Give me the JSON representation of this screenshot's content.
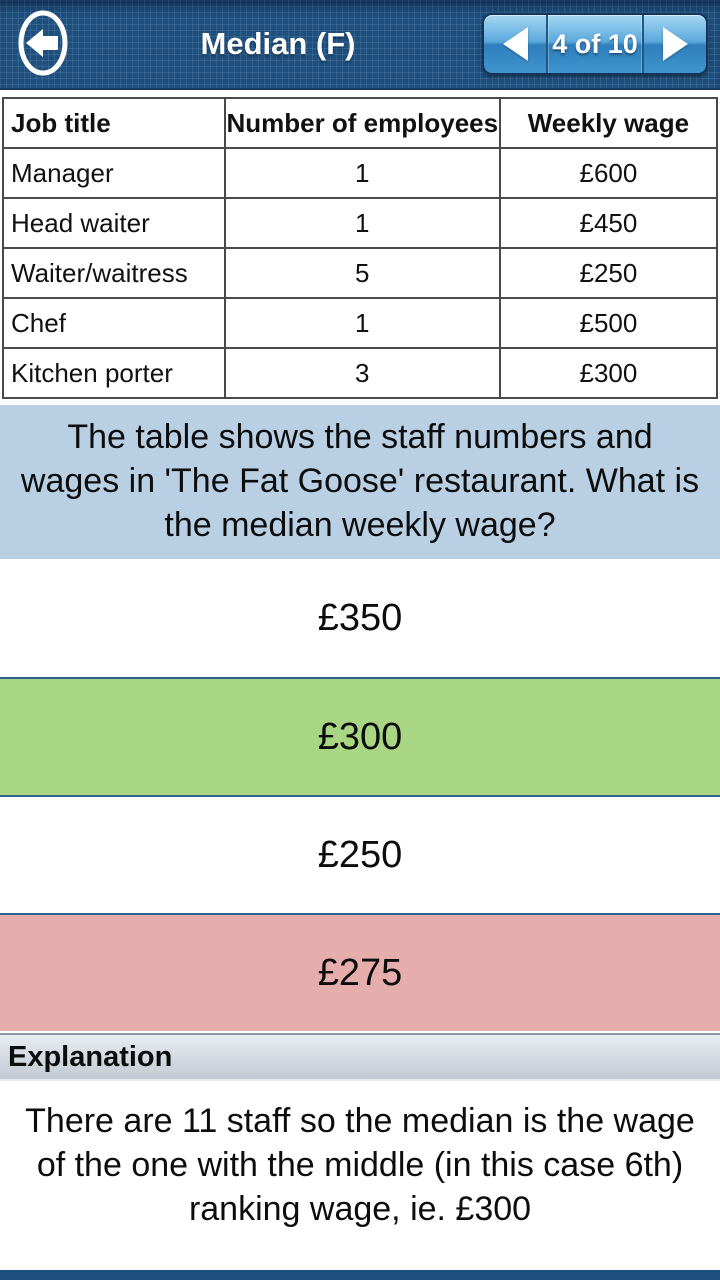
{
  "header": {
    "title": "Median (F)",
    "back_icon": "back-arrow",
    "nav": {
      "position": "4 of 10",
      "prev_icon": "left-triangle",
      "next_icon": "right-triangle"
    }
  },
  "table": {
    "headers": [
      "Job title",
      "Number of employees",
      "Weekly wage"
    ],
    "rows": [
      [
        "Manager",
        "1",
        "£600"
      ],
      [
        "Head waiter",
        "1",
        "£450"
      ],
      [
        "Waiter/waitress",
        "5",
        "£250"
      ],
      [
        "Chef",
        "1",
        "£500"
      ],
      [
        "Kitchen porter",
        "3",
        "£300"
      ]
    ]
  },
  "question": "The table shows the staff numbers and wages in 'The Fat Goose' restaurant. What is the median weekly wage?",
  "answers": [
    {
      "label": "£350",
      "state": "default"
    },
    {
      "label": "£300",
      "state": "correct"
    },
    {
      "label": "£250",
      "state": "default"
    },
    {
      "label": "£275",
      "state": "incorrect"
    }
  ],
  "explanation": {
    "heading": "Explanation",
    "text": "There are 11 staff so the median is the wage of the one with the middle (in this case 6th) ranking wage, ie. £300"
  },
  "colors": {
    "header_blue": "#1e4f7d",
    "question_blue": "#b9cfe3",
    "correct_green": "#a8d682",
    "incorrect_red": "#e6adad"
  }
}
